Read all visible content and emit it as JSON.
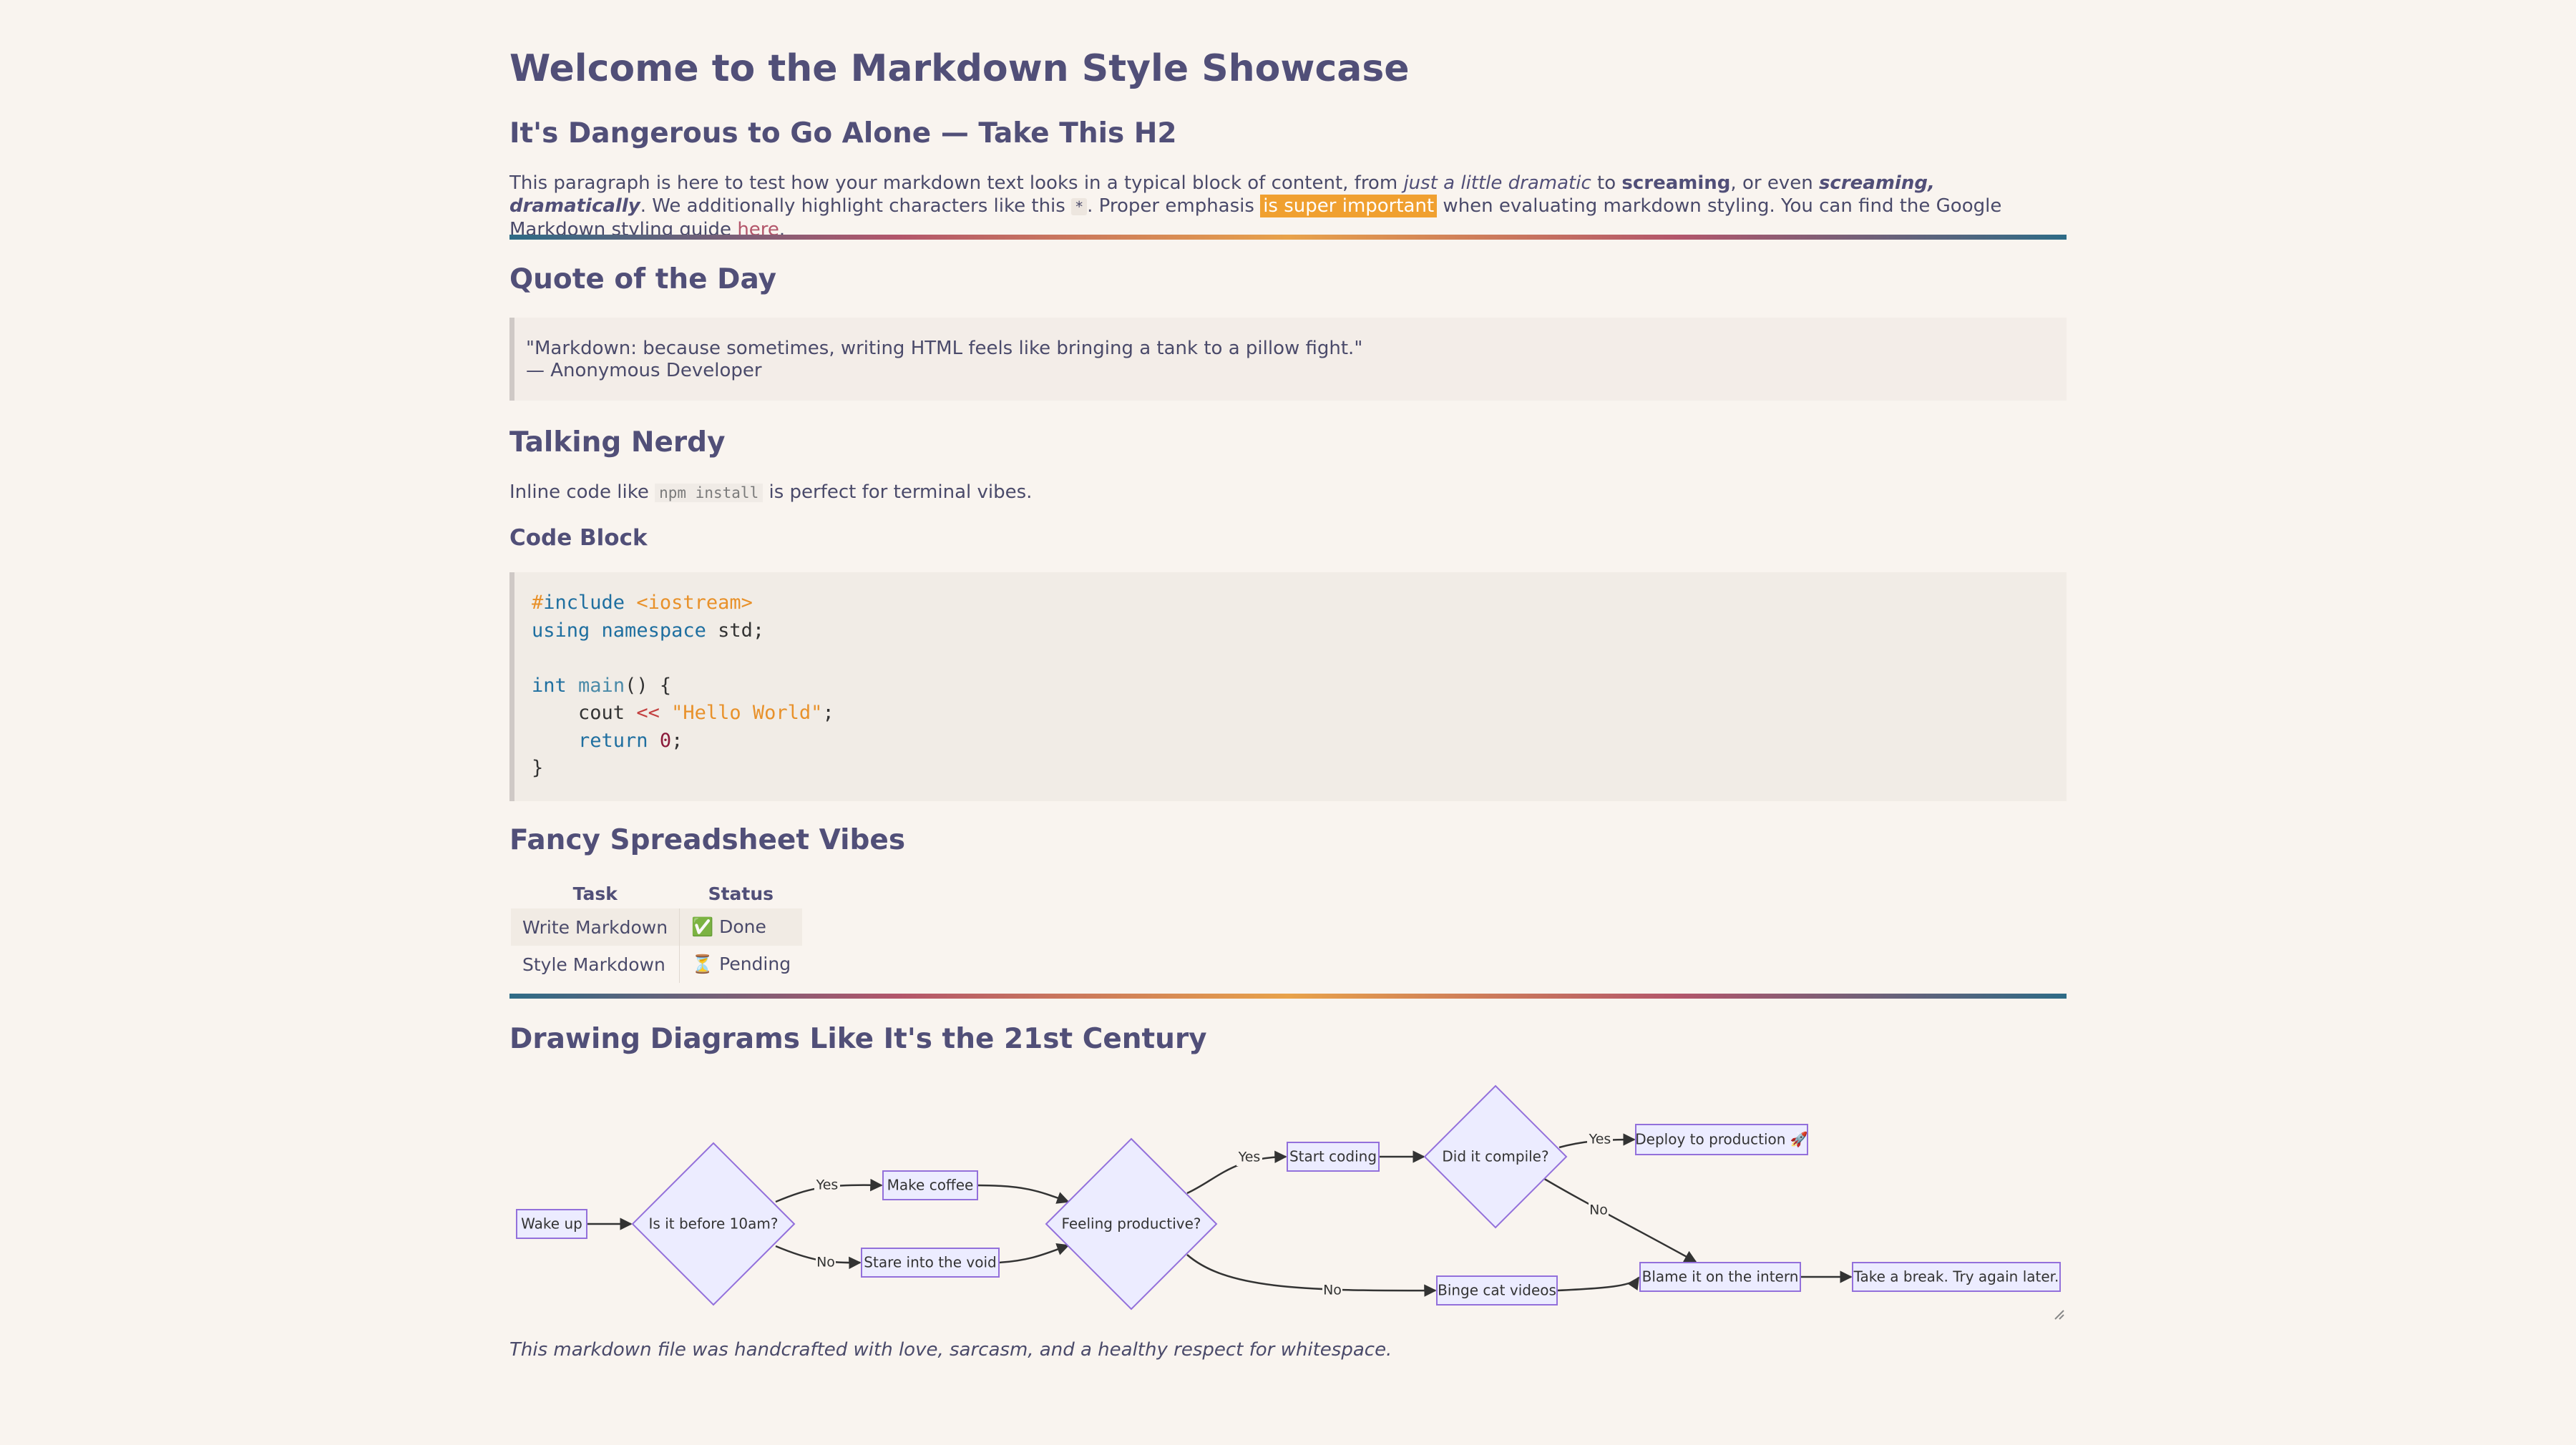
{
  "title": "Welcome to the Markdown Style Showcase",
  "subtitle": "It's Dangerous to Go Alone — Take This H2",
  "intro": {
    "t1": "This paragraph is here to test how your markdown text looks in a typical block of content, from ",
    "em1": "just a little dramatic",
    "t2": " to ",
    "strong1": "screaming",
    "t3": ", or even ",
    "strongem1": "screaming, dramatically",
    "t4": ". We additionally highlight characters like this ",
    "star": "*",
    "t5": ". Proper emphasis ",
    "highlight": "is super important",
    "t6": " when evaluating markdown styling. You can find the Google Markdown styling guide ",
    "link": "here",
    "t7": "."
  },
  "quote_section": {
    "heading": "Quote of the Day",
    "quote": "\"Markdown: because sometimes, writing HTML feels like bringing a tank to a pillow fight.\"",
    "attribution": "— Anonymous Developer"
  },
  "nerdy": {
    "heading": "Talking Nerdy",
    "text_before": "Inline code like ",
    "inline_code": "npm install",
    "text_after": " is perfect for terminal vibes.",
    "code_heading": "Code Block",
    "code": {
      "l1_hash": "#",
      "l1_kw": "include",
      "l1_rest": " <iostream>",
      "l2_kw1": "using",
      "l2_kw2": "namespace",
      "l2_rest": " std;",
      "l4_kw": "int",
      "l4_fn": "main",
      "l4_rest": "() {",
      "l5_ident": "cout",
      "l5_op": "<<",
      "l5_str": "\"Hello World\"",
      "l5_end": ";",
      "l6_kw": "return",
      "l6_num": "0",
      "l6_end": ";",
      "l7": "}"
    }
  },
  "sheet": {
    "heading": "Fancy Spreadsheet Vibes",
    "headers": [
      "Task",
      "Status"
    ],
    "rows": [
      {
        "task": "Write Markdown",
        "status": "✅ Done"
      },
      {
        "task": "Style Markdown",
        "status": "⏳ Pending"
      }
    ]
  },
  "diagram": {
    "heading": "Drawing Diagrams Like It's the 21st Century",
    "nodes": {
      "wake": "Wake up",
      "before10": "Is it before 10am?",
      "coffee": "Make coffee",
      "void": "Stare into the void",
      "productive": "Feeling productive?",
      "coding": "Start coding",
      "compile": "Did it compile?",
      "deploy": "Deploy to production 🚀",
      "cats": "Binge cat videos",
      "blame": "Blame it on the intern",
      "break": "Take a break. Try again later."
    },
    "labels": {
      "yes": "Yes",
      "no": "No"
    }
  },
  "footer": "This markdown file was handcrafted with love, sarcasm, and a healthy respect for whitespace."
}
